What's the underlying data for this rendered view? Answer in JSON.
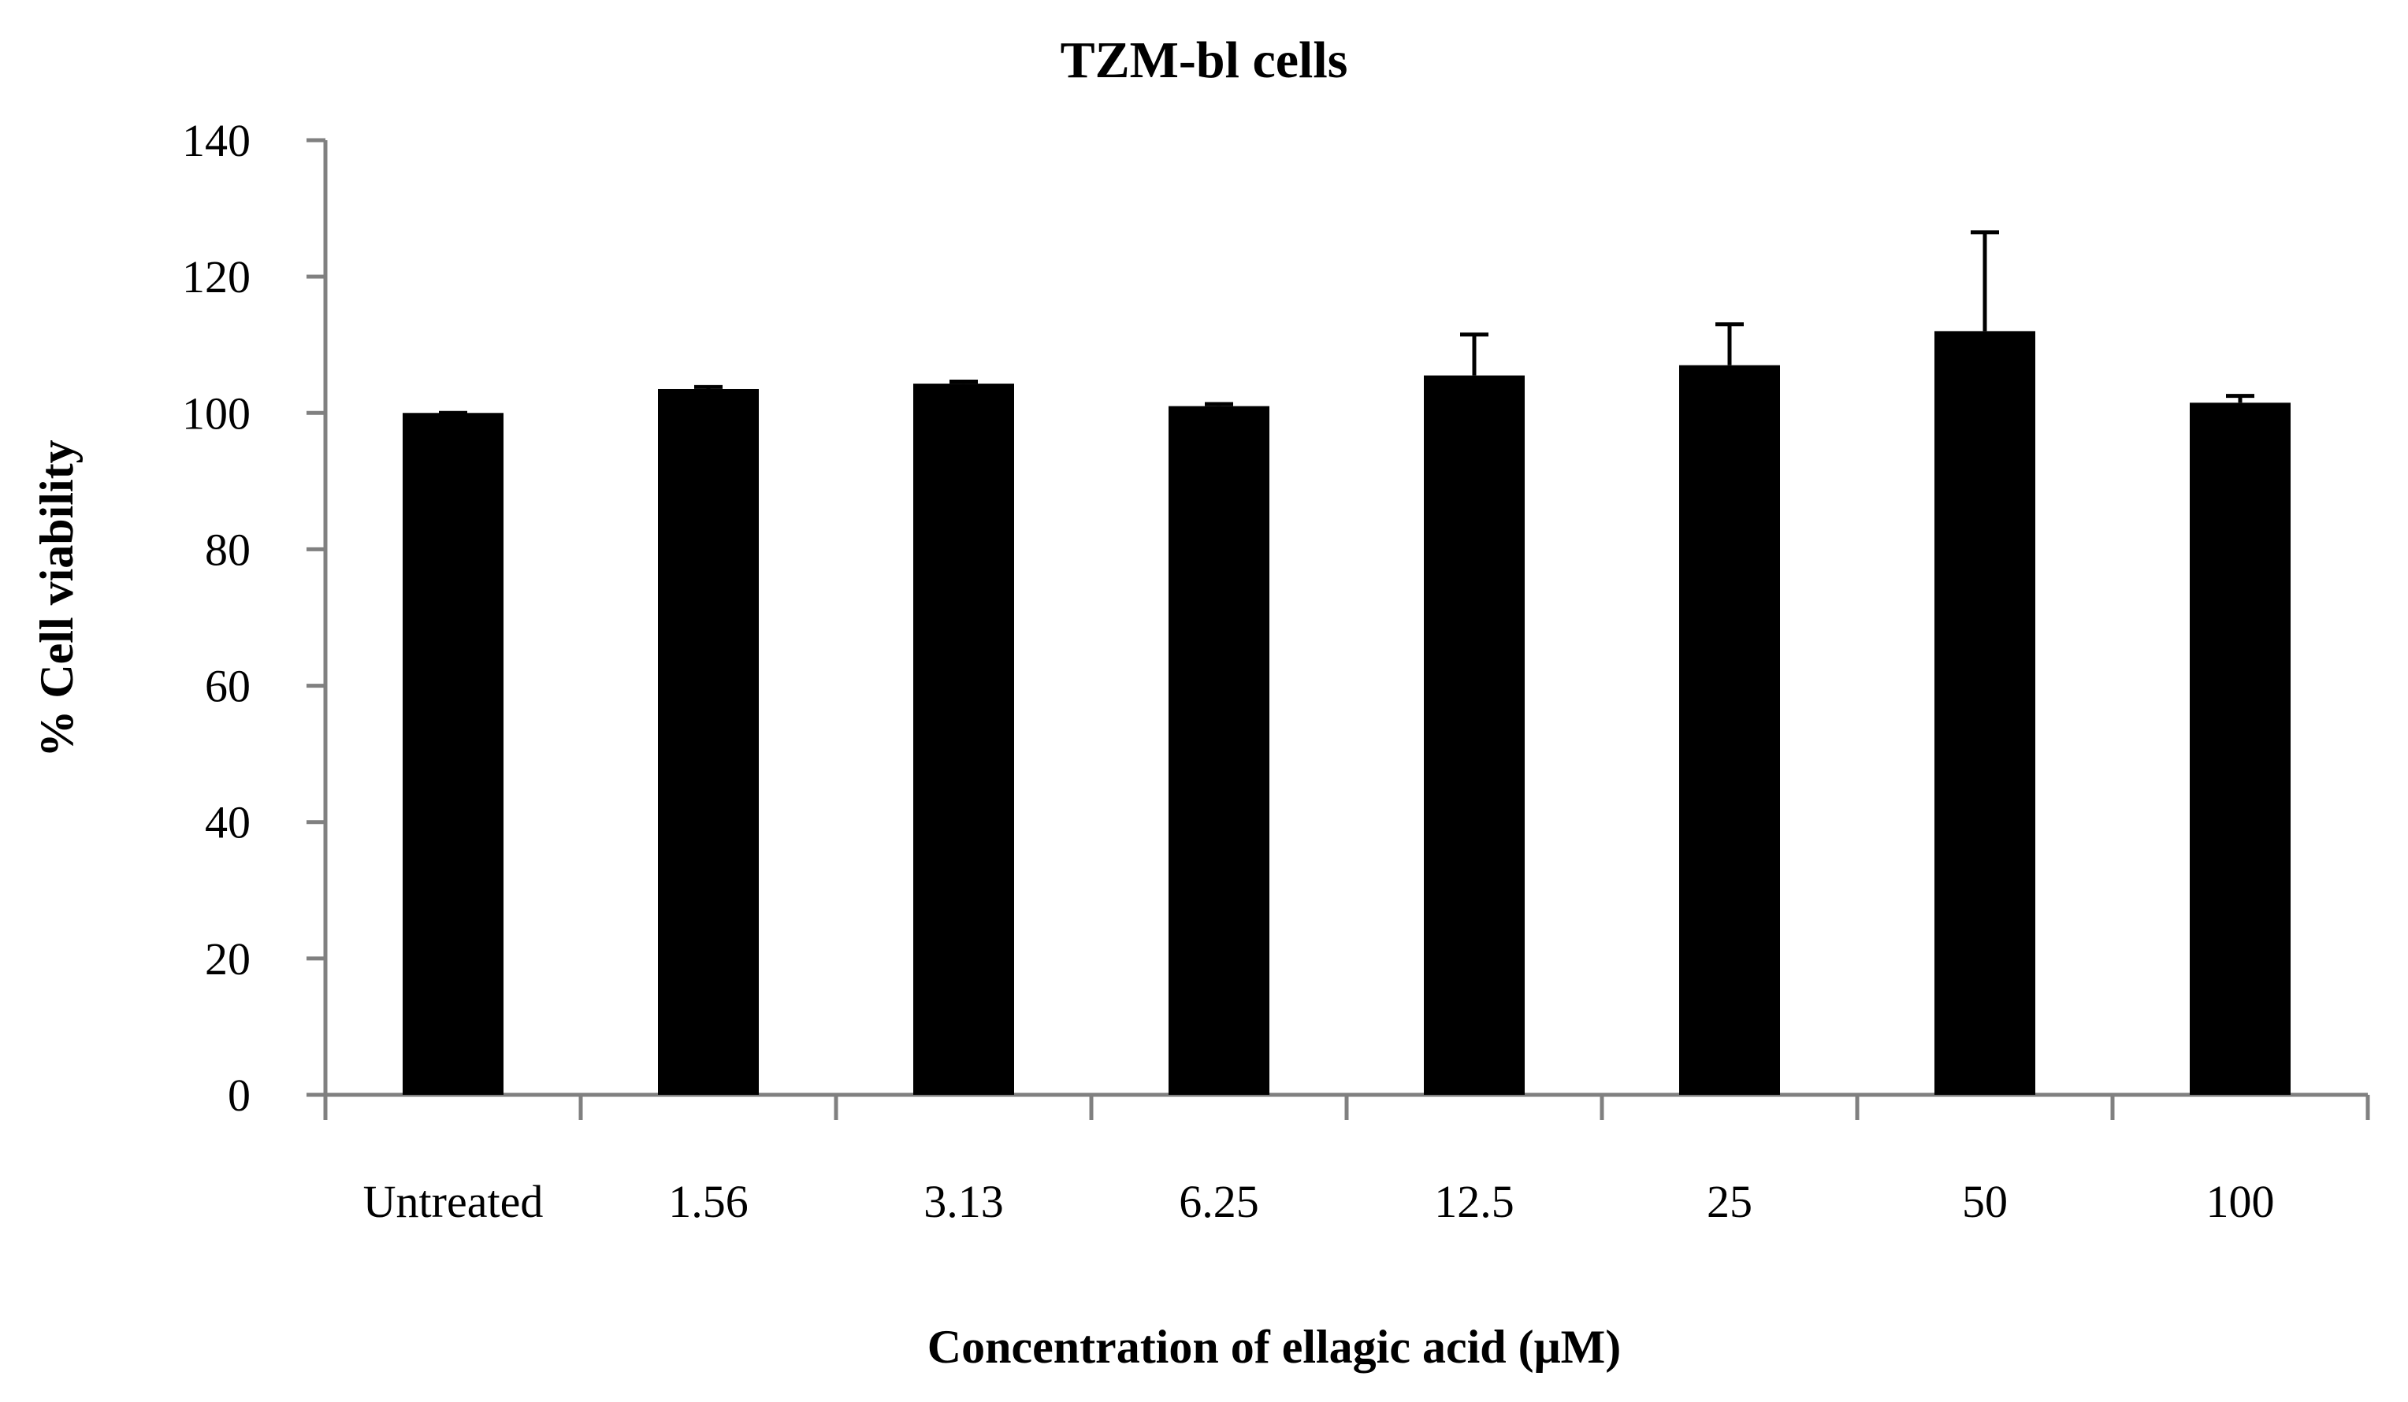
{
  "chart_data": {
    "type": "bar",
    "title": "TZM-bl cells",
    "xlabel": "Concentration of ellagic acid (μM)",
    "ylabel": "% Cell viability",
    "categories": [
      "Untreated",
      "1.56",
      "3.13",
      "6.25",
      "12.5",
      "25",
      "50",
      "100"
    ],
    "series": [
      {
        "name": "% Cell viability",
        "values": [
          100,
          103.5,
          104.3,
          101,
          105.5,
          107,
          112,
          101.5
        ],
        "error_plus": [
          0,
          0.3,
          0.3,
          0.3,
          6,
          6,
          14.5,
          1
        ],
        "color": "#000000"
      }
    ],
    "ylim": [
      0,
      140
    ],
    "yticks": [
      0,
      20,
      40,
      60,
      80,
      100,
      120,
      140
    ],
    "grid": false,
    "legend": "none"
  }
}
